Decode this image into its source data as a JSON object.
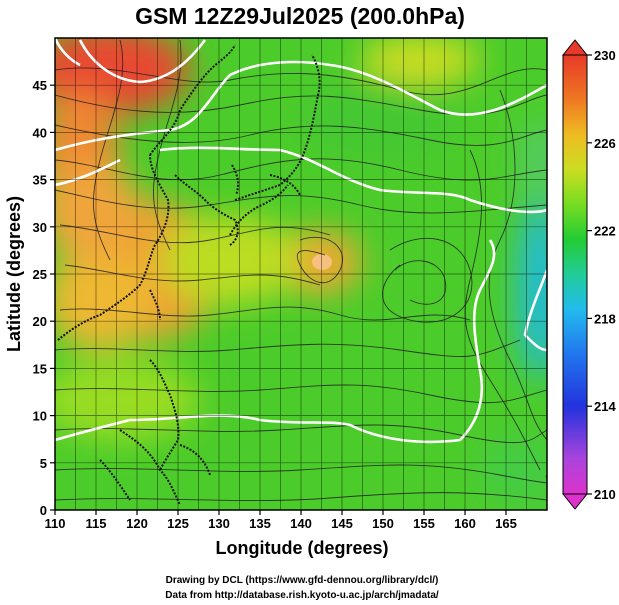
{
  "title": "GSM 12Z29Jul2025 (200.0hPa)",
  "xlabel": "Longitude (degrees)",
  "ylabel": "Latitude  (degrees)",
  "x_ticks": [
    "110",
    "115",
    "120",
    "125",
    "130",
    "135",
    "140",
    "145",
    "150",
    "155",
    "160",
    "165"
  ],
  "y_ticks": [
    "0",
    "5",
    "10",
    "15",
    "20",
    "25",
    "30",
    "35",
    "40",
    "45"
  ],
  "colorbar": {
    "ticks": [
      "230",
      "226",
      "222",
      "218",
      "214",
      "210"
    ],
    "min": 210,
    "max": 230,
    "colors": [
      "#dd33cc",
      "#8855dd",
      "#2233dd",
      "#2277ee",
      "#22bbee",
      "#22cc99",
      "#22cc33",
      "#77dd22",
      "#ccdd22",
      "#eebb22",
      "#ee7722",
      "#e83a2a"
    ]
  },
  "credits": {
    "line1": "Drawing by DCL (https://www.gfd-dennou.org/library/dcl/)",
    "line2": "Data from http://database.rish.kyoto-u.ac.jp/arch/jmadata/"
  },
  "map": {
    "lon_range": [
      110,
      170
    ],
    "lat_range": [
      0,
      50
    ],
    "fields": [
      "temperature",
      "streamlines"
    ],
    "contour_color": "#ffffff",
    "coastline_color": "#000000"
  }
}
